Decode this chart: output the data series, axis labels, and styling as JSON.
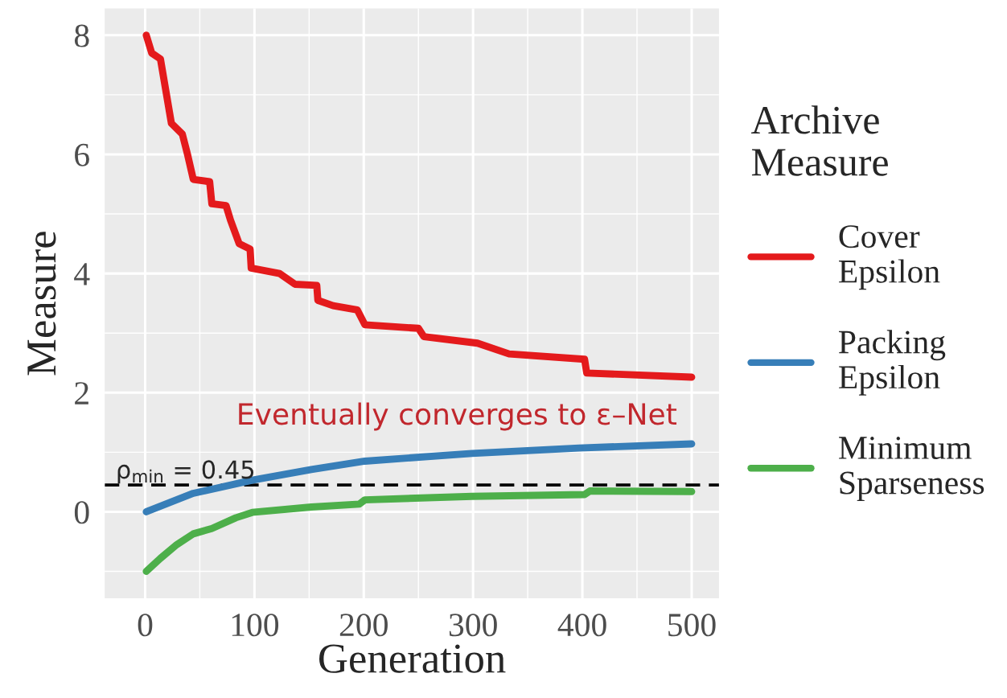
{
  "chart_data": {
    "type": "line",
    "xlabel": "Generation",
    "ylabel": "Measure",
    "legend_title": "Archive\nMeasure",
    "xlim": [
      -37,
      525
    ],
    "xticks": [
      0,
      100,
      200,
      300,
      400,
      500
    ],
    "ylim": [
      -1.45,
      8.45
    ],
    "yticks": [
      0,
      2,
      4,
      6,
      8
    ],
    "grid": true,
    "legend": "right",
    "series": [
      {
        "name": "Cover\nEpsilon",
        "color": "#e41a1c",
        "x": [
          1,
          6,
          14,
          19,
          24,
          34,
          39,
          44,
          59,
          61,
          74,
          78,
          86,
          96,
          97,
          123,
          137,
          157,
          158,
          172,
          194,
          201,
          250,
          255,
          304,
          333,
          402,
          404,
          500
        ],
        "values": [
          8.0,
          7.7,
          7.6,
          7.06,
          6.52,
          6.34,
          5.98,
          5.58,
          5.54,
          5.17,
          5.14,
          4.9,
          4.5,
          4.41,
          4.09,
          4.0,
          3.82,
          3.8,
          3.55,
          3.46,
          3.39,
          3.14,
          3.08,
          2.94,
          2.83,
          2.65,
          2.56,
          2.33,
          2.26
        ]
      },
      {
        "name": "Packing\nEpsilon",
        "color": "#377eb8",
        "x": [
          1,
          44,
          98,
          152,
          201,
          299,
          397,
          500
        ],
        "values": [
          0.0,
          0.31,
          0.53,
          0.71,
          0.85,
          0.98,
          1.07,
          1.14
        ]
      },
      {
        "name": "Minimum\nSparseness",
        "color": "#4daf4a",
        "x": [
          1,
          14,
          29,
          44,
          61,
          83,
          98,
          152,
          196,
          201,
          299,
          402,
          407,
          500
        ],
        "values": [
          -1.0,
          -0.78,
          -0.55,
          -0.37,
          -0.28,
          -0.1,
          -0.01,
          0.08,
          0.13,
          0.2,
          0.26,
          0.29,
          0.35,
          0.34
        ]
      }
    ],
    "ref_lines": [
      {
        "axis": "y",
        "value": 0.45,
        "label": "ρ$_{min}$ = 0.45",
        "color": "#000000",
        "line_style": "dashed"
      }
    ],
    "annotations": [
      "Eventually converges to ε–Net"
    ]
  }
}
